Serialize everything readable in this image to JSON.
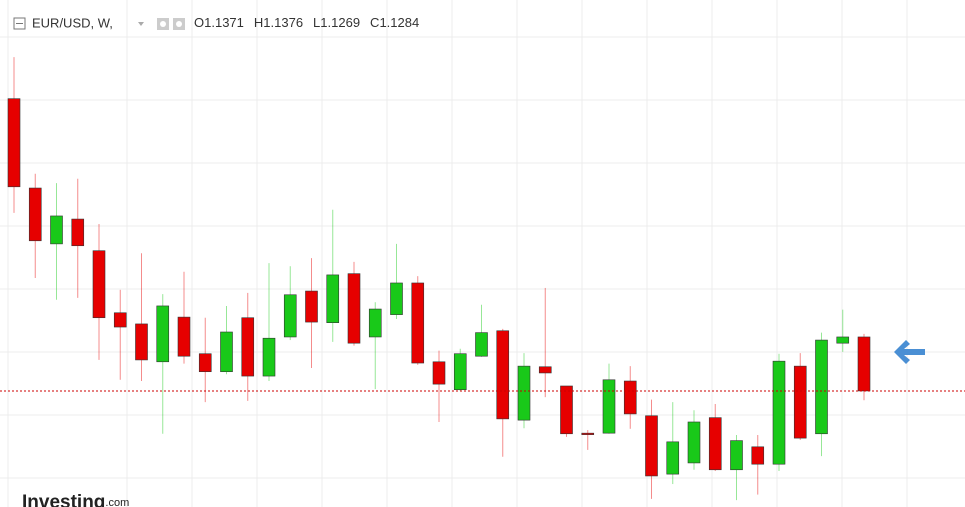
{
  "chart_data": {
    "type": "candlestick",
    "symbol": "EUR/USD, W,",
    "ohlc_labels": [
      "O",
      "H",
      "L",
      "C"
    ],
    "watermark": [
      "Investing",
      ".com"
    ],
    "up_color": "#19c919",
    "down_color": "#e60000",
    "ylim": [
      1.1097,
      1.1914
    ],
    "open": [
      1.1755,
      1.1611,
      1.1521,
      1.1561,
      1.151,
      1.141,
      1.1392,
      1.1331,
      1.1403,
      1.1344,
      1.1315,
      1.1402,
      1.1308,
      1.1371,
      1.1445,
      1.1394,
      1.1473,
      1.1371,
      1.1407,
      1.1458,
      1.1331,
      1.1286,
      1.134,
      1.1381,
      1.1237,
      1.1323,
      1.1292,
      1.1216,
      1.1216,
      1.13,
      1.1244,
      1.115,
      1.1168,
      1.1241,
      1.1157,
      1.1194,
      1.1166,
      1.1324,
      1.1215,
      1.1361,
      1.1371
    ],
    "high": [
      1.1822,
      1.1634,
      1.1619,
      1.1626,
      1.1553,
      1.1447,
      1.1506,
      1.144,
      1.1476,
      1.1402,
      1.1421,
      1.1442,
      1.149,
      1.1485,
      1.1498,
      1.1576,
      1.1492,
      1.1427,
      1.1521,
      1.1469,
      1.1349,
      1.1352,
      1.1423,
      1.1384,
      1.1345,
      1.145,
      1.1292,
      1.1221,
      1.1328,
      1.1324,
      1.127,
      1.1266,
      1.1253,
      1.1263,
      1.1213,
      1.1213,
      1.1344,
      1.1345,
      1.1378,
      1.1415,
      1.1376
    ],
    "low": [
      1.1571,
      1.1466,
      1.1431,
      1.1434,
      1.1334,
      1.1302,
      1.13,
      1.1215,
      1.1328,
      1.1266,
      1.1311,
      1.1268,
      1.13,
      1.1366,
      1.1321,
      1.1363,
      1.1357,
      1.1287,
      1.14,
      1.1326,
      1.1234,
      1.1284,
      1.1339,
      1.1178,
      1.1224,
      1.1274,
      1.121,
      1.1189,
      1.1215,
      1.1223,
      1.111,
      1.1134,
      1.1157,
      1.1155,
      1.1108,
      1.1117,
      1.1155,
      1.1205,
      1.1179,
      1.1347,
      1.1269
    ],
    "close": [
      1.1613,
      1.1526,
      1.1566,
      1.1518,
      1.1402,
      1.1387,
      1.1334,
      1.1421,
      1.134,
      1.1315,
      1.1379,
      1.1308,
      1.1369,
      1.1439,
      1.1395,
      1.1471,
      1.1361,
      1.1416,
      1.1458,
      1.1329,
      1.1295,
      1.1344,
      1.1378,
      1.1239,
      1.1324,
      1.1313,
      1.1215,
      1.1215,
      1.1302,
      1.1247,
      1.1147,
      1.1202,
      1.1234,
      1.1157,
      1.1204,
      1.1166,
      1.1332,
      1.1208,
      1.1366,
      1.1371,
      1.1284
    ]
  }
}
